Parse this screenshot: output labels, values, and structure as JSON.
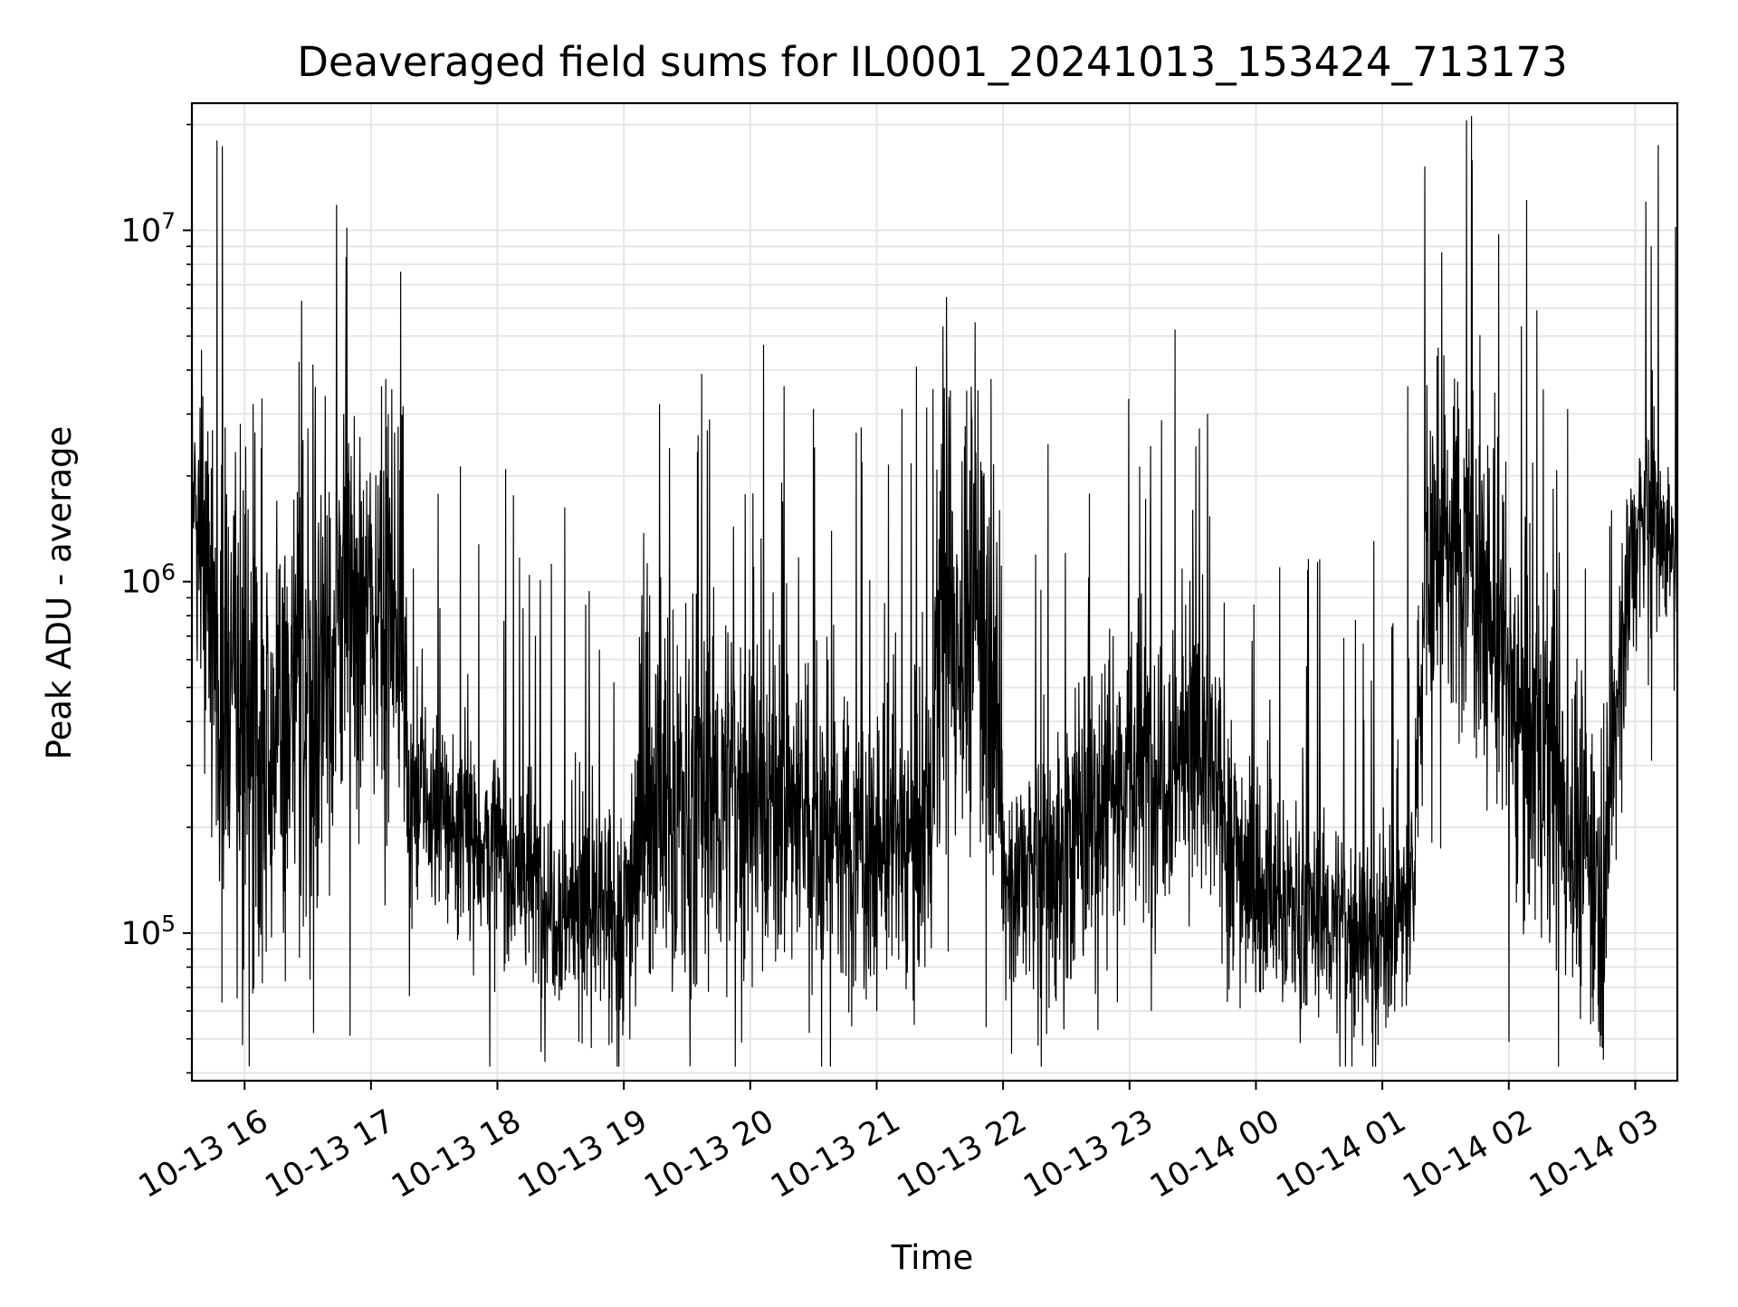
{
  "chart_data": {
    "type": "line",
    "title": "Deaveraged field sums for IL0001_20241013_153424_713173",
    "xlabel": "Time",
    "ylabel": "Peak ADU - average",
    "y_scale": "log",
    "ylim": [
      38000,
      23000000
    ],
    "xlim": [
      "2024-10-13 15:35",
      "2024-10-14 03:20"
    ],
    "x_ticks": [
      "2024-10-13 16:00",
      "2024-10-13 17:00",
      "2024-10-13 18:00",
      "2024-10-13 19:00",
      "2024-10-13 20:00",
      "2024-10-13 21:00",
      "2024-10-13 22:00",
      "2024-10-13 23:00",
      "2024-10-14 00:00",
      "2024-10-14 01:00",
      "2024-10-14 02:00",
      "2024-10-14 03:00"
    ],
    "x_tick_labels": [
      "10-13 16",
      "10-13 17",
      "10-13 18",
      "10-13 19",
      "10-13 20",
      "10-13 21",
      "10-13 22",
      "10-13 23",
      "10-14 00",
      "10-14 01",
      "10-14 02",
      "10-14 03"
    ],
    "y_ticks": [
      {
        "value": 100000,
        "base": "10",
        "exp": "5"
      },
      {
        "value": 1000000,
        "base": "10",
        "exp": "6"
      },
      {
        "value": 10000000,
        "base": "10",
        "exp": "7"
      }
    ],
    "grid": true,
    "line_color": "#000000",
    "grid_color": "#e6e6e6",
    "series": [
      {
        "envelope": [
          {
            "x": "2024-10-13 15:35",
            "median": 1800000,
            "spread": 0.2
          },
          {
            "x": "2024-10-13 15:40",
            "median": 1500000,
            "spread": 0.3
          },
          {
            "x": "2024-10-13 15:45",
            "median": 700000,
            "spread": 0.45
          },
          {
            "x": "2024-10-13 15:50",
            "median": 500000,
            "spread": 0.5
          },
          {
            "x": "2024-10-13 16:00",
            "median": 400000,
            "spread": 0.55
          },
          {
            "x": "2024-10-13 16:15",
            "median": 380000,
            "spread": 0.55
          },
          {
            "x": "2024-10-13 16:30",
            "median": 500000,
            "spread": 0.55
          },
          {
            "x": "2024-10-13 16:45",
            "median": 800000,
            "spread": 0.45
          },
          {
            "x": "2024-10-13 17:00",
            "median": 900000,
            "spread": 0.4
          },
          {
            "x": "2024-10-13 17:15",
            "median": 850000,
            "spread": 0.4
          },
          {
            "x": "2024-10-13 17:18",
            "median": 250000,
            "spread": 0.25
          },
          {
            "x": "2024-10-13 17:30",
            "median": 220000,
            "spread": 0.22
          },
          {
            "x": "2024-10-13 18:00",
            "median": 170000,
            "spread": 0.22
          },
          {
            "x": "2024-10-13 18:30",
            "median": 120000,
            "spread": 0.22
          },
          {
            "x": "2024-10-13 19:00",
            "median": 110000,
            "spread": 0.22
          },
          {
            "x": "2024-10-13 19:10",
            "median": 250000,
            "spread": 0.4
          },
          {
            "x": "2024-10-13 19:30",
            "median": 220000,
            "spread": 0.4
          },
          {
            "x": "2024-10-13 20:00",
            "median": 270000,
            "spread": 0.35
          },
          {
            "x": "2024-10-13 20:30",
            "median": 200000,
            "spread": 0.3
          },
          {
            "x": "2024-10-13 21:00",
            "median": 170000,
            "spread": 0.3
          },
          {
            "x": "2024-10-13 21:25",
            "median": 200000,
            "spread": 0.3
          },
          {
            "x": "2024-10-13 21:30",
            "median": 700000,
            "spread": 0.45
          },
          {
            "x": "2024-10-13 21:55",
            "median": 800000,
            "spread": 0.45
          },
          {
            "x": "2024-10-13 22:00",
            "median": 140000,
            "spread": 0.25
          },
          {
            "x": "2024-10-13 22:30",
            "median": 160000,
            "spread": 0.3
          },
          {
            "x": "2024-10-13 22:45",
            "median": 260000,
            "spread": 0.35
          },
          {
            "x": "2024-10-13 23:00",
            "median": 280000,
            "spread": 0.35
          },
          {
            "x": "2024-10-13 23:30",
            "median": 350000,
            "spread": 0.3
          },
          {
            "x": "2024-10-14 00:00",
            "median": 130000,
            "spread": 0.22
          },
          {
            "x": "2024-10-14 00:30",
            "median": 110000,
            "spread": 0.2
          },
          {
            "x": "2024-10-14 01:00",
            "median": 100000,
            "spread": 0.2
          },
          {
            "x": "2024-10-14 01:15",
            "median": 130000,
            "spread": 0.22
          },
          {
            "x": "2024-10-14 01:20",
            "median": 1200000,
            "spread": 0.35
          },
          {
            "x": "2024-10-14 01:40",
            "median": 1300000,
            "spread": 0.35
          },
          {
            "x": "2024-10-14 02:00",
            "median": 500000,
            "spread": 0.4
          },
          {
            "x": "2024-10-14 02:30",
            "median": 200000,
            "spread": 0.35
          },
          {
            "x": "2024-10-14 02:45",
            "median": 130000,
            "spread": 0.3
          },
          {
            "x": "2024-10-14 02:55",
            "median": 900000,
            "spread": 0.3
          },
          {
            "x": "2024-10-14 03:05",
            "median": 1600000,
            "spread": 0.2
          },
          {
            "x": "2024-10-14 03:20",
            "median": 1200000,
            "spread": 0.15
          }
        ],
        "spikes": [
          {
            "x": "2024-10-13 15:47",
            "y": 18000000
          },
          {
            "x": "2024-10-13 16:27",
            "y": 6300000
          },
          {
            "x": "2024-10-13 16:04",
            "y": 3200000
          },
          {
            "x": "2024-10-13 16:47",
            "y": 3000000
          },
          {
            "x": "2024-10-13 17:05",
            "y": 3600000
          },
          {
            "x": "2024-10-13 19:17",
            "y": 3200000
          },
          {
            "x": "2024-10-13 19:37",
            "y": 3900000
          },
          {
            "x": "2024-10-13 20:16",
            "y": 3600000
          },
          {
            "x": "2024-10-13 20:30",
            "y": 3100000
          },
          {
            "x": "2024-10-13 21:12",
            "y": 3100000
          },
          {
            "x": "2024-10-13 21:35",
            "y": 3500000
          },
          {
            "x": "2024-10-13 21:48",
            "y": 3500000
          },
          {
            "x": "2024-10-13 23:30",
            "y": 1600000
          },
          {
            "x": "2024-10-13 23:37",
            "y": 3000000
          },
          {
            "x": "2024-10-14 01:12",
            "y": 3600000
          },
          {
            "x": "2024-10-14 01:43",
            "y": 3500000
          },
          {
            "x": "2024-10-14 02:28",
            "y": 3100000
          },
          {
            "x": "2024-10-14 03:08",
            "y": 4000000
          },
          {
            "x": "2024-10-13 15:59",
            "y": 48000
          },
          {
            "x": "2024-10-13 16:50",
            "y": 51000
          },
          {
            "x": "2024-10-13 18:53",
            "y": 48000
          },
          {
            "x": "2024-10-13 20:28",
            "y": 52000
          },
          {
            "x": "2024-10-13 21:52",
            "y": 54000
          },
          {
            "x": "2024-10-13 22:45",
            "y": 53000
          },
          {
            "x": "2024-10-14 00:58",
            "y": 48000
          },
          {
            "x": "2024-10-14 02:00",
            "y": 49000
          },
          {
            "x": "2024-10-14 02:40",
            "y": 56000
          }
        ]
      }
    ]
  }
}
